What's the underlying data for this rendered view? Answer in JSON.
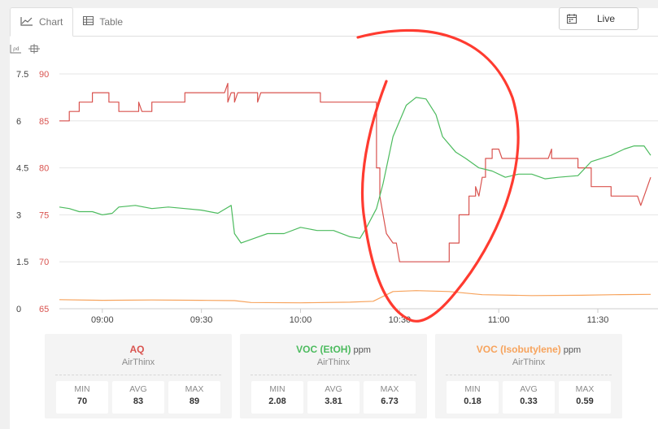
{
  "tabs": [
    {
      "label": "Chart",
      "icon": "line-chart-icon",
      "active": true
    },
    {
      "label": "Table",
      "icon": "table-icon",
      "active": false
    }
  ],
  "live_button": {
    "label": "Live",
    "icon": "calendar-icon"
  },
  "toolbar_icons": [
    "zoom-icon",
    "pan-icon"
  ],
  "chart_data": {
    "type": "line",
    "x_ticks": [
      "09:00",
      "09:30",
      "10:00",
      "10:30",
      "11:00",
      "11:30"
    ],
    "x_range": [
      "08:47",
      "11:46"
    ],
    "y_left": {
      "ticks": [
        "0",
        "1.5",
        "3",
        "4.5",
        "6",
        "7.5"
      ],
      "range": [
        0,
        7.5
      ]
    },
    "y_right": {
      "ticks": [
        "65",
        "70",
        "75",
        "80",
        "85",
        "90"
      ],
      "range": [
        65,
        90
      ],
      "color": "#d9534f"
    },
    "grid": true,
    "series": [
      {
        "name": "AQ",
        "axis": "right",
        "color": "#d9534f",
        "points": [
          [
            "08:47",
            85
          ],
          [
            "08:50",
            85
          ],
          [
            "08:50",
            86
          ],
          [
            "08:53",
            86
          ],
          [
            "08:53",
            87
          ],
          [
            "08:57",
            87
          ],
          [
            "08:57",
            88
          ],
          [
            "09:02",
            88
          ],
          [
            "09:02",
            87
          ],
          [
            "09:05",
            87
          ],
          [
            "09:05",
            86
          ],
          [
            "09:11",
            86
          ],
          [
            "09:11",
            87
          ],
          [
            "09:12",
            86
          ],
          [
            "09:15",
            86
          ],
          [
            "09:15",
            87
          ],
          [
            "09:25",
            87
          ],
          [
            "09:25",
            88
          ],
          [
            "09:37",
            88
          ],
          [
            "09:38",
            89
          ],
          [
            "09:38",
            87
          ],
          [
            "09:39",
            88
          ],
          [
            "09:40",
            88
          ],
          [
            "09:40",
            87
          ],
          [
            "09:41",
            88
          ],
          [
            "09:47",
            88
          ],
          [
            "09:47",
            87
          ],
          [
            "09:48",
            88
          ],
          [
            "10:06",
            88
          ],
          [
            "10:06",
            87
          ],
          [
            "10:22",
            87
          ],
          [
            "10:23",
            87
          ],
          [
            "10:23",
            80
          ],
          [
            "10:24",
            80
          ],
          [
            "10:24",
            77
          ],
          [
            "10:25",
            75
          ],
          [
            "10:26",
            73
          ],
          [
            "10:28",
            72
          ],
          [
            "10:29",
            72
          ],
          [
            "10:30",
            70
          ],
          [
            "10:45",
            70
          ],
          [
            "10:45",
            72
          ],
          [
            "10:48",
            72
          ],
          [
            "10:48",
            75
          ],
          [
            "10:51",
            75
          ],
          [
            "10:51",
            77
          ],
          [
            "10:53",
            77
          ],
          [
            "10:53",
            78
          ],
          [
            "10:54",
            77
          ],
          [
            "10:55",
            79
          ],
          [
            "10:56",
            79
          ],
          [
            "10:56",
            81
          ],
          [
            "10:58",
            81
          ],
          [
            "10:58",
            82
          ],
          [
            "11:00",
            82
          ],
          [
            "11:01",
            81
          ],
          [
            "11:15",
            81
          ],
          [
            "11:16",
            82
          ],
          [
            "11:16",
            81
          ],
          [
            "11:24",
            81
          ],
          [
            "11:24",
            80
          ],
          [
            "11:28",
            80
          ],
          [
            "11:28",
            78
          ],
          [
            "11:34",
            78
          ],
          [
            "11:34",
            77
          ],
          [
            "11:42",
            77
          ],
          [
            "11:43",
            76
          ],
          [
            "11:44",
            77
          ],
          [
            "11:46",
            79
          ]
        ]
      },
      {
        "name": "VOC (EtOH)",
        "unit": "ppm",
        "axis": "left",
        "color": "#4cbb5e",
        "points": [
          [
            "08:47",
            3.25
          ],
          [
            "08:50",
            3.2
          ],
          [
            "08:53",
            3.1
          ],
          [
            "08:57",
            3.1
          ],
          [
            "09:00",
            3.0
          ],
          [
            "09:03",
            3.05
          ],
          [
            "09:05",
            3.25
          ],
          [
            "09:10",
            3.3
          ],
          [
            "09:15",
            3.2
          ],
          [
            "09:20",
            3.25
          ],
          [
            "09:25",
            3.2
          ],
          [
            "09:30",
            3.15
          ],
          [
            "09:35",
            3.05
          ],
          [
            "09:39",
            3.3
          ],
          [
            "09:40",
            2.4
          ],
          [
            "09:42",
            2.1
          ],
          [
            "09:46",
            2.25
          ],
          [
            "09:50",
            2.4
          ],
          [
            "09:55",
            2.4
          ],
          [
            "10:00",
            2.6
          ],
          [
            "10:05",
            2.5
          ],
          [
            "10:10",
            2.5
          ],
          [
            "10:15",
            2.3
          ],
          [
            "10:18",
            2.25
          ],
          [
            "10:20",
            2.6
          ],
          [
            "10:23",
            3.2
          ],
          [
            "10:25",
            4.0
          ],
          [
            "10:28",
            5.5
          ],
          [
            "10:32",
            6.5
          ],
          [
            "10:35",
            6.75
          ],
          [
            "10:38",
            6.7
          ],
          [
            "10:41",
            6.2
          ],
          [
            "10:43",
            5.5
          ],
          [
            "10:47",
            5.0
          ],
          [
            "10:50",
            4.8
          ],
          [
            "10:54",
            4.5
          ],
          [
            "10:58",
            4.4
          ],
          [
            "11:02",
            4.2
          ],
          [
            "11:06",
            4.3
          ],
          [
            "11:10",
            4.3
          ],
          [
            "11:14",
            4.15
          ],
          [
            "11:18",
            4.2
          ],
          [
            "11:24",
            4.25
          ],
          [
            "11:28",
            4.7
          ],
          [
            "11:34",
            4.9
          ],
          [
            "11:38",
            5.1
          ],
          [
            "11:41",
            5.2
          ],
          [
            "11:44",
            5.2
          ],
          [
            "11:46",
            4.9
          ]
        ]
      },
      {
        "name": "VOC (Isobutylene)",
        "unit": "ppm",
        "axis": "left",
        "color": "#f7a35c",
        "points": [
          [
            "08:47",
            0.29
          ],
          [
            "09:00",
            0.27
          ],
          [
            "09:15",
            0.28
          ],
          [
            "09:30",
            0.27
          ],
          [
            "09:40",
            0.26
          ],
          [
            "09:45",
            0.2
          ],
          [
            "10:00",
            0.19
          ],
          [
            "10:15",
            0.21
          ],
          [
            "10:22",
            0.24
          ],
          [
            "10:28",
            0.55
          ],
          [
            "10:35",
            0.58
          ],
          [
            "10:45",
            0.55
          ],
          [
            "10:55",
            0.45
          ],
          [
            "11:10",
            0.42
          ],
          [
            "11:25",
            0.43
          ],
          [
            "11:35",
            0.45
          ],
          [
            "11:46",
            0.46
          ]
        ]
      }
    ]
  },
  "stats": [
    {
      "name": "AQ",
      "unit": "",
      "source": "AirThinx",
      "color": "#d9534f",
      "min_label": "MIN",
      "avg_label": "AVG",
      "max_label": "MAX",
      "min": "70",
      "avg": "83",
      "max": "89"
    },
    {
      "name": "VOC (EtOH)",
      "unit": "ppm",
      "source": "AirThinx",
      "color": "#4cbb5e",
      "min_label": "MIN",
      "avg_label": "AVG",
      "max_label": "MAX",
      "min": "2.08",
      "avg": "3.81",
      "max": "6.73"
    },
    {
      "name": "VOC (Isobutylene)",
      "unit": "ppm",
      "source": "AirThinx",
      "color": "#f7a35c",
      "min_label": "MIN",
      "avg_label": "AVG",
      "max_label": "MAX",
      "min": "0.18",
      "avg": "0.33",
      "max": "0.59"
    }
  ],
  "annotation": {
    "shape": "hand-drawn oval",
    "color": "#ff3b30"
  }
}
